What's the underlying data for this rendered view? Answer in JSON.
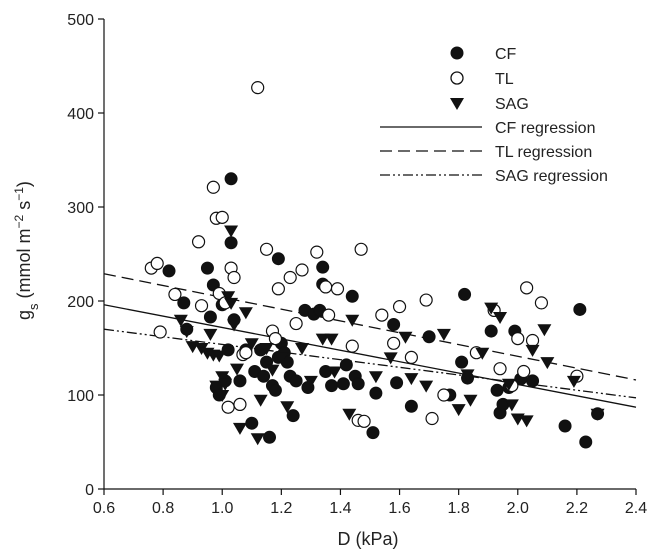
{
  "chart_data": {
    "type": "scatter",
    "xlabel": "D (kPa)",
    "ylabel_main": "g",
    "ylabel_sub": "s",
    "ylabel_rest_1": " (mmol m",
    "ylabel_exp_1": "−2",
    "ylabel_rest_2": " s",
    "ylabel_exp_2": "−1",
    "ylabel_rest_3": ")",
    "xlim": [
      0.6,
      2.4
    ],
    "ylim": [
      0,
      500
    ],
    "xticks": [
      "0.6",
      "0.8",
      "1.0",
      "1.2",
      "1.4",
      "1.6",
      "1.8",
      "2.0",
      "2.2",
      "2.4"
    ],
    "yticks": [
      "0",
      "100",
      "200",
      "300",
      "400",
      "500"
    ],
    "legend_position": "top-right",
    "legend": {
      "cf": "CF",
      "tl": "TL",
      "sag": "SAG",
      "cf_reg": "CF regression",
      "tl_reg": "TL regression",
      "sag_reg": "SAG regression"
    },
    "series": [
      {
        "name": "CF",
        "marker": "filled-circle",
        "points": [
          [
            0.82,
            232
          ],
          [
            0.87,
            198
          ],
          [
            0.88,
            170
          ],
          [
            0.95,
            235
          ],
          [
            0.96,
            183
          ],
          [
            0.97,
            217
          ],
          [
            0.98,
            108
          ],
          [
            0.99,
            100
          ],
          [
            1.0,
            196
          ],
          [
            1.01,
            115
          ],
          [
            1.02,
            148
          ],
          [
            1.03,
            330
          ],
          [
            1.03,
            262
          ],
          [
            1.04,
            180
          ],
          [
            1.06,
            115
          ],
          [
            1.08,
            148
          ],
          [
            1.1,
            70
          ],
          [
            1.11,
            125
          ],
          [
            1.13,
            148
          ],
          [
            1.14,
            120
          ],
          [
            1.15,
            135
          ],
          [
            1.16,
            55
          ],
          [
            1.17,
            110
          ],
          [
            1.18,
            105
          ],
          [
            1.19,
            245
          ],
          [
            1.19,
            140
          ],
          [
            1.2,
            155
          ],
          [
            1.21,
            145
          ],
          [
            1.22,
            135
          ],
          [
            1.23,
            120
          ],
          [
            1.24,
            78
          ],
          [
            1.25,
            115
          ],
          [
            1.28,
            190
          ],
          [
            1.29,
            108
          ],
          [
            1.31,
            186
          ],
          [
            1.33,
            190
          ],
          [
            1.34,
            218
          ],
          [
            1.34,
            236
          ],
          [
            1.35,
            125
          ],
          [
            1.37,
            110
          ],
          [
            1.41,
            112
          ],
          [
            1.42,
            132
          ],
          [
            1.44,
            205
          ],
          [
            1.45,
            120
          ],
          [
            1.46,
            112
          ],
          [
            1.51,
            60
          ],
          [
            1.52,
            102
          ],
          [
            1.58,
            175
          ],
          [
            1.59,
            113
          ],
          [
            1.64,
            88
          ],
          [
            1.7,
            162
          ],
          [
            1.77,
            100
          ],
          [
            1.81,
            135
          ],
          [
            1.82,
            207
          ],
          [
            1.83,
            118
          ],
          [
            1.91,
            168
          ],
          [
            1.93,
            105
          ],
          [
            1.94,
            81
          ],
          [
            1.95,
            90
          ],
          [
            1.97,
            108
          ],
          [
            1.99,
            168
          ],
          [
            2.01,
            117
          ],
          [
            2.05,
            115
          ],
          [
            2.16,
            67
          ],
          [
            2.21,
            191
          ],
          [
            2.23,
            50
          ],
          [
            2.27,
            80
          ]
        ]
      },
      {
        "name": "TL",
        "marker": "open-circle",
        "points": [
          [
            0.76,
            235
          ],
          [
            0.78,
            240
          ],
          [
            0.79,
            167
          ],
          [
            0.84,
            207
          ],
          [
            0.92,
            263
          ],
          [
            0.93,
            195
          ],
          [
            0.97,
            321
          ],
          [
            0.98,
            288
          ],
          [
            0.99,
            208
          ],
          [
            1.0,
            289
          ],
          [
            1.01,
            198
          ],
          [
            1.02,
            87
          ],
          [
            1.03,
            235
          ],
          [
            1.04,
            225
          ],
          [
            1.06,
            90
          ],
          [
            1.07,
            143
          ],
          [
            1.08,
            145
          ],
          [
            1.12,
            427
          ],
          [
            1.15,
            255
          ],
          [
            1.17,
            168
          ],
          [
            1.18,
            160
          ],
          [
            1.19,
            213
          ],
          [
            1.23,
            225
          ],
          [
            1.25,
            176
          ],
          [
            1.27,
            233
          ],
          [
            1.32,
            252
          ],
          [
            1.35,
            215
          ],
          [
            1.36,
            185
          ],
          [
            1.39,
            213
          ],
          [
            1.44,
            152
          ],
          [
            1.46,
            73
          ],
          [
            1.47,
            255
          ],
          [
            1.48,
            72
          ],
          [
            1.54,
            185
          ],
          [
            1.58,
            155
          ],
          [
            1.6,
            194
          ],
          [
            1.64,
            140
          ],
          [
            1.69,
            201
          ],
          [
            1.71,
            75
          ],
          [
            1.75,
            100
          ],
          [
            1.86,
            145
          ],
          [
            1.92,
            190
          ],
          [
            1.94,
            128
          ],
          [
            1.98,
            110
          ],
          [
            2.0,
            160
          ],
          [
            2.02,
            125
          ],
          [
            2.03,
            214
          ],
          [
            2.05,
            158
          ],
          [
            2.08,
            198
          ],
          [
            2.2,
            120
          ]
        ]
      },
      {
        "name": "SAG",
        "marker": "filled-triangle-down",
        "points": [
          [
            0.86,
            180
          ],
          [
            0.88,
            168
          ],
          [
            0.9,
            152
          ],
          [
            0.93,
            150
          ],
          [
            0.95,
            145
          ],
          [
            0.96,
            165
          ],
          [
            0.97,
            143
          ],
          [
            0.98,
            110
          ],
          [
            0.99,
            142
          ],
          [
            1.0,
            120
          ],
          [
            1.0,
            100
          ],
          [
            1.01,
            112
          ],
          [
            1.02,
            205
          ],
          [
            1.03,
            275
          ],
          [
            1.03,
            198
          ],
          [
            1.04,
            175
          ],
          [
            1.05,
            128
          ],
          [
            1.06,
            65
          ],
          [
            1.08,
            188
          ],
          [
            1.1,
            155
          ],
          [
            1.12,
            54
          ],
          [
            1.13,
            95
          ],
          [
            1.15,
            150
          ],
          [
            1.17,
            127
          ],
          [
            1.2,
            140
          ],
          [
            1.22,
            88
          ],
          [
            1.27,
            150
          ],
          [
            1.3,
            115
          ],
          [
            1.34,
            160
          ],
          [
            1.37,
            160
          ],
          [
            1.38,
            125
          ],
          [
            1.43,
            80
          ],
          [
            1.44,
            180
          ],
          [
            1.52,
            120
          ],
          [
            1.57,
            140
          ],
          [
            1.62,
            162
          ],
          [
            1.64,
            118
          ],
          [
            1.69,
            110
          ],
          [
            1.75,
            165
          ],
          [
            1.8,
            85
          ],
          [
            1.83,
            122
          ],
          [
            1.84,
            95
          ],
          [
            1.88,
            145
          ],
          [
            1.91,
            193
          ],
          [
            1.94,
            183
          ],
          [
            1.97,
            112
          ],
          [
            1.98,
            90
          ],
          [
            2.0,
            75
          ],
          [
            2.03,
            73
          ],
          [
            2.05,
            148
          ],
          [
            2.09,
            170
          ],
          [
            2.1,
            135
          ],
          [
            2.19,
            115
          ],
          [
            2.27,
            80
          ]
        ]
      }
    ],
    "regressions": [
      {
        "name": "CF regression",
        "style": "solid",
        "x": [
          0.6,
          2.4
        ],
        "y": [
          196,
          87
        ]
      },
      {
        "name": "TL regression",
        "style": "dashed",
        "x": [
          0.6,
          2.4
        ],
        "y": [
          229,
          116
        ]
      },
      {
        "name": "SAG regression",
        "style": "dash-dot-dot",
        "x": [
          0.6,
          2.4
        ],
        "y": [
          170,
          97
        ]
      }
    ]
  }
}
